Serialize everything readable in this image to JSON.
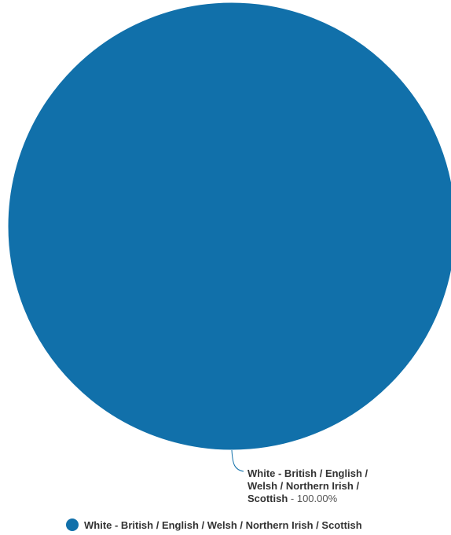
{
  "chart_data": {
    "type": "pie",
    "categories": [
      "White - British / English / Welsh / Northern Irish / Scottish"
    ],
    "values": [
      100.0
    ],
    "colors": [
      "#1170aa"
    ],
    "data_labels": [
      {
        "name_lines": [
          "White - British / English /",
          "Welsh / Northern Irish /",
          "Scottish"
        ],
        "value_text": " - 100.00%"
      }
    ],
    "legend": {
      "position": "bottom",
      "items": [
        "White - British / English / Welsh / Northern Irish / Scottish"
      ]
    }
  }
}
